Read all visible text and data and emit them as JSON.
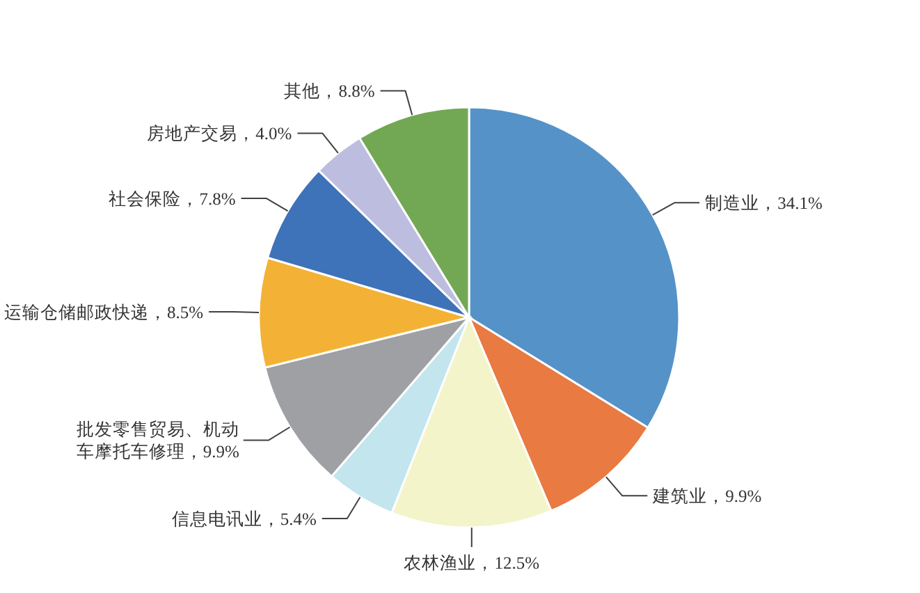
{
  "chart_data": {
    "type": "pie",
    "categories": [
      "制造业",
      "建筑业",
      "农林渔业",
      "信息电讯业",
      "批发零售贸易、机动车摩托车修理",
      "运输仓储邮政快递",
      "社会保险",
      "房地产交易",
      "其他"
    ],
    "values": [
      34.1,
      9.9,
      12.5,
      5.4,
      9.9,
      8.5,
      7.8,
      4.0,
      8.8
    ],
    "value_labels": [
      "34.1%",
      "9.9%",
      "12.5%",
      "5.4%",
      "9.9%",
      "8.5%",
      "7.8%",
      "4.0%",
      "8.8%"
    ],
    "colors": [
      "#5592c8",
      "#e87a42",
      "#f3f4c9",
      "#c2e5ee",
      "#9fa0a4",
      "#f3b235",
      "#3e72b9",
      "#bdbde0",
      "#72a853"
    ]
  }
}
